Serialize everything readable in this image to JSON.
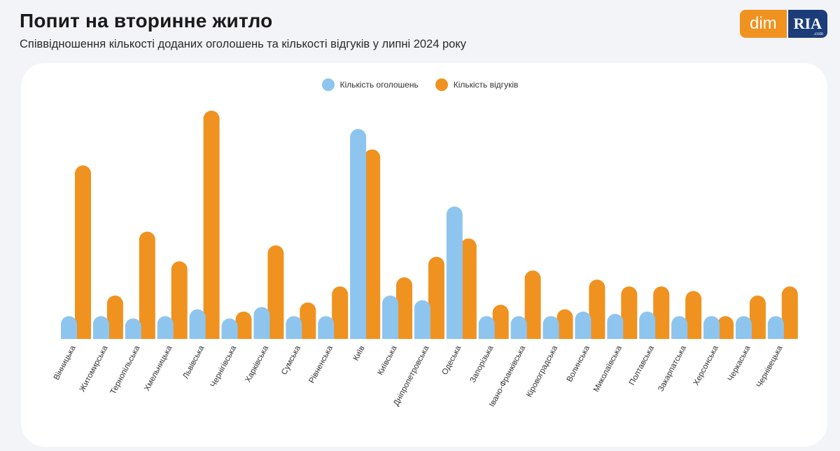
{
  "header": {
    "title": "Попит на вторинне житло",
    "subtitle": "Співвідношення кількості доданих оголошень та кількості відгуків у липні 2024 року"
  },
  "logo": {
    "left": "dim",
    "right": "RIA",
    "right_suffix": ".com"
  },
  "colors": {
    "listings": "#8ec5ef",
    "responses": "#f0921f"
  },
  "chart_data": {
    "type": "bar",
    "title": "Попит на вторинне житло",
    "subtitle": "Співвідношення кількості доданих оголошень та кількості відгуків у липні 2024 року",
    "legend_position": "top-center",
    "grid": false,
    "ylim": [
      0,
      100
    ],
    "categories": [
      "Вінницька",
      "Житомирська",
      "Тернопільська",
      "Хмельницька",
      "Львівська",
      "Чернігівська",
      "Харківська",
      "Сумська",
      "Рівненська",
      "Київ",
      "Київська",
      "Дніпропетровська",
      "Одеська",
      "Запорізька",
      "Івано-Франківська",
      "Кіровоградська",
      "Волинська",
      "Миколаївська",
      "Полтавська",
      "Закарпатська",
      "Херсонська",
      "Черкаська",
      "Чернівецька"
    ],
    "series": [
      {
        "name": "Кількість оголошень",
        "color": "#8ec5ef",
        "values": [
          10,
          10,
          9,
          10,
          13,
          9,
          14,
          10,
          10,
          92,
          19,
          17,
          58,
          10,
          10,
          10,
          12,
          11,
          12,
          10,
          10,
          10,
          10
        ]
      },
      {
        "name": "Кількість відгуків",
        "color": "#f0921f",
        "values": [
          76,
          19,
          47,
          34,
          100,
          12,
          41,
          16,
          23,
          83,
          27,
          36,
          44,
          15,
          30,
          13,
          26,
          23,
          23,
          21,
          10,
          19,
          23
        ]
      }
    ]
  }
}
